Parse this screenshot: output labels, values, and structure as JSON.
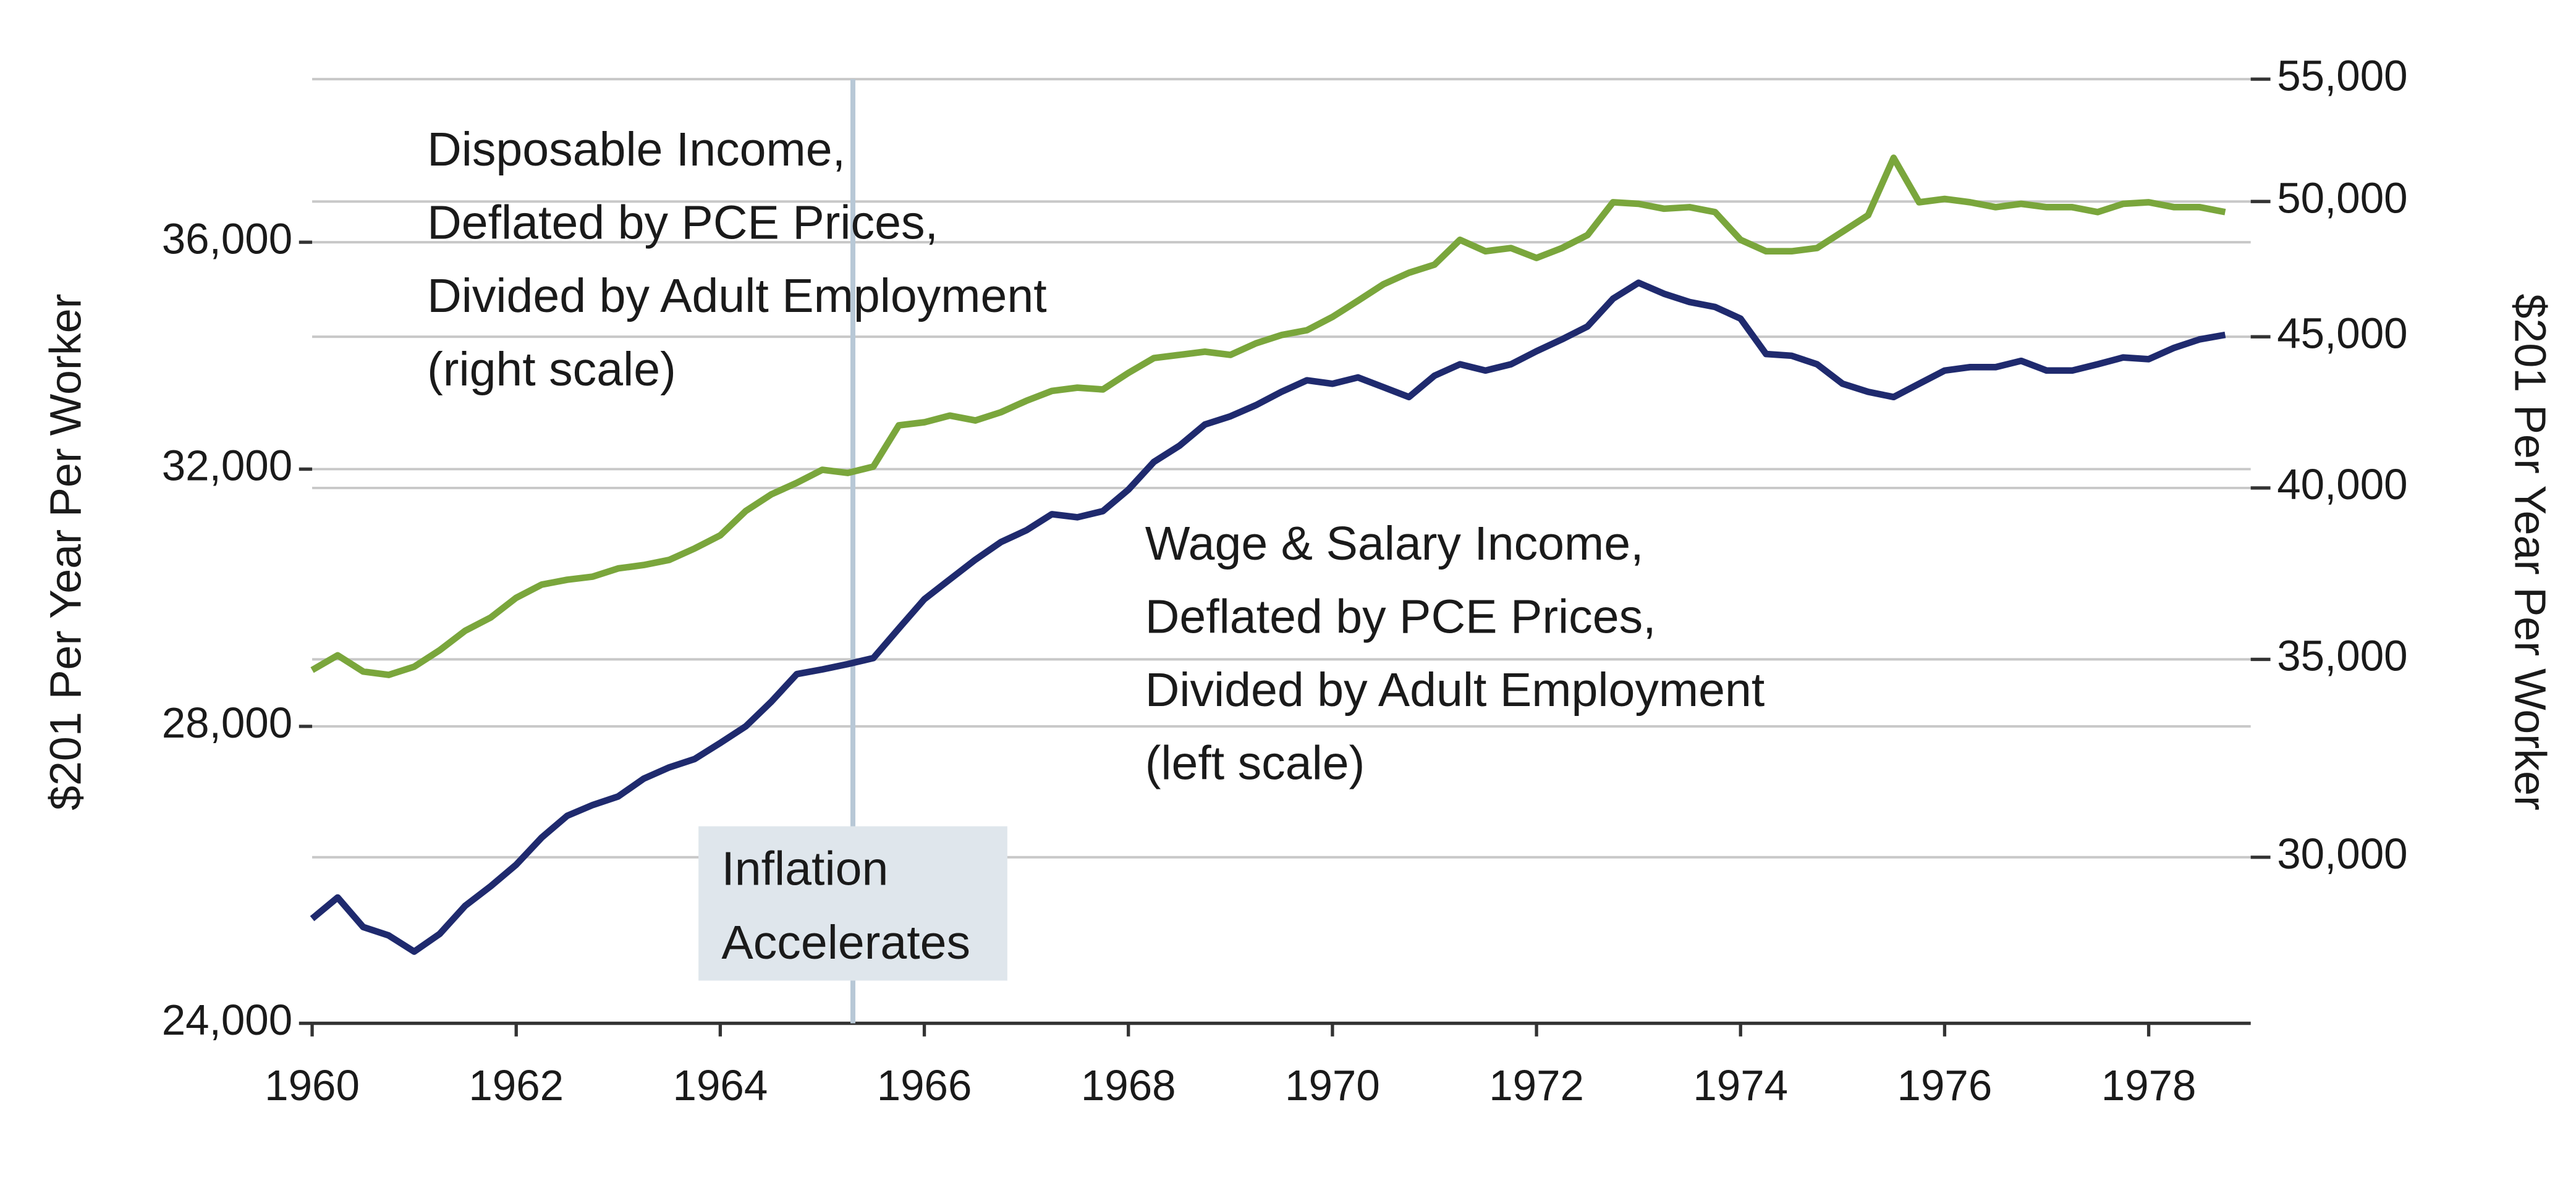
{
  "chart_data": {
    "type": "line",
    "ylabel": "$201 Per Year Per Worker",
    "y2label": "$201 Per Year Per Worker",
    "log_scale": true,
    "grid": true,
    "x": [
      1960,
      1960.25,
      1960.5,
      1960.75,
      1961,
      1961.25,
      1961.5,
      1961.75,
      1962,
      1962.25,
      1962.5,
      1962.75,
      1963,
      1963.25,
      1963.5,
      1963.75,
      1964,
      1964.25,
      1964.5,
      1964.75,
      1965,
      1965.25,
      1965.5,
      1965.75,
      1966,
      1966.25,
      1966.5,
      1966.75,
      1967,
      1967.25,
      1967.5,
      1967.75,
      1968,
      1968.25,
      1968.5,
      1968.75,
      1969,
      1969.25,
      1969.5,
      1969.75,
      1970,
      1970.25,
      1970.5,
      1970.75,
      1971,
      1971.25,
      1971.5,
      1971.75,
      1972,
      1972.25,
      1972.5,
      1972.75,
      1973,
      1973.25,
      1973.5,
      1973.75,
      1974,
      1974.25,
      1974.5,
      1974.75,
      1975,
      1975.25,
      1975.5,
      1975.75,
      1976,
      1976.25,
      1976.5,
      1976.75,
      1977,
      1977.25,
      1977.5,
      1977.75,
      1978,
      1978.25,
      1978.5,
      1978.75
    ],
    "xlim": [
      1960,
      1979
    ],
    "xticks": [
      1960,
      1962,
      1964,
      1966,
      1968,
      1970,
      1972,
      1974,
      1976,
      1978
    ],
    "ylim": [
      24000,
      39180
    ],
    "yticks": [
      {
        "value": 24000,
        "label": "24,000"
      },
      {
        "value": 28000,
        "label": "28,000"
      },
      {
        "value": 32000,
        "label": "32,000"
      },
      {
        "value": 36000,
        "label": "36,000"
      }
    ],
    "y2lim": [
      26360,
      55000
    ],
    "y2ticks": [
      {
        "value": 30000,
        "label": "30,000"
      },
      {
        "value": 35000,
        "label": "35,000"
      },
      {
        "value": 40000,
        "label": "40,000"
      },
      {
        "value": 45000,
        "label": "45,000"
      },
      {
        "value": 50000,
        "label": "50,000"
      },
      {
        "value": 55000,
        "label": "55,000"
      }
    ],
    "series": [
      {
        "name": [
          "Disposable Income,",
          "Deflated by PCE Prices,",
          "Divided by Adult Employment",
          "(right scale)"
        ],
        "color": "#7aa63c",
        "axis": "y2",
        "values": [
          34710,
          35110,
          34670,
          34580,
          34800,
          35250,
          35790,
          36160,
          36720,
          37100,
          37240,
          37330,
          37570,
          37670,
          37820,
          38160,
          38550,
          39290,
          39800,
          40160,
          40570,
          40470,
          40670,
          42000,
          42100,
          42320,
          42160,
          42430,
          42810,
          43140,
          43250,
          43190,
          43750,
          44260,
          44370,
          44480,
          44370,
          44770,
          45060,
          45230,
          45700,
          46280,
          46880,
          47300,
          47600,
          48530,
          48100,
          48220,
          47850,
          48220,
          48710,
          49970,
          49910,
          49720,
          49780,
          49590,
          48530,
          48100,
          48100,
          48220,
          48840,
          49470,
          51730,
          49970,
          50100,
          49970,
          49780,
          49910,
          49780,
          49780,
          49590,
          49910,
          49970,
          49780,
          49780,
          49590
        ]
      },
      {
        "name": [
          "Wage & Salary Income,",
          "Deflated by PCE Prices,",
          "Divided by Adult Employment",
          "(left scale)"
        ],
        "color": "#1f2a6e",
        "axis": "y",
        "values": [
          25340,
          25620,
          25230,
          25120,
          24910,
          25140,
          25510,
          25770,
          26060,
          26430,
          26730,
          26880,
          27000,
          27250,
          27410,
          27530,
          27760,
          28000,
          28360,
          28770,
          28840,
          28920,
          29010,
          29460,
          29910,
          30220,
          30530,
          30810,
          31000,
          31260,
          31210,
          31310,
          31660,
          32120,
          32390,
          32750,
          32890,
          33080,
          33310,
          33510,
          33450,
          33560,
          33390,
          33220,
          33590,
          33790,
          33680,
          33790,
          34020,
          34230,
          34460,
          34960,
          35250,
          35050,
          34900,
          34810,
          34600,
          33970,
          33940,
          33790,
          33450,
          33310,
          33220,
          33450,
          33680,
          33740,
          33740,
          33850,
          33680,
          33680,
          33790,
          33910,
          33880,
          34080,
          34230,
          34310
        ]
      }
    ],
    "annotations": [
      {
        "text": [
          "Inflation",
          "Accelerates"
        ],
        "x": 1965.3
      }
    ]
  }
}
